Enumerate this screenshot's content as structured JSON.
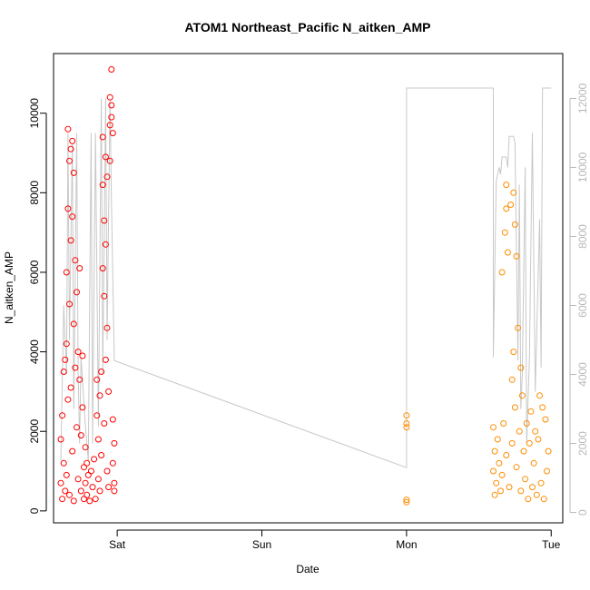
{
  "chart_data": {
    "type": "scatter",
    "title": "ATOM1 Northeast_Pacific N_aitken_AMP",
    "xlabel": "Date",
    "ylabel": "N_aitken_AMP",
    "x_unit": "days (0 = Sat 00:00)",
    "x_ticks": [
      {
        "pos": 0,
        "label": "Sat"
      },
      {
        "pos": 1,
        "label": "Sun"
      },
      {
        "pos": 2,
        "label": "Mon"
      },
      {
        "pos": 3,
        "label": "Tue"
      }
    ],
    "xlim": [
      -0.44,
      3.08
    ],
    "ylim": [
      -300,
      11500
    ],
    "y_ticks": [
      0,
      2000,
      4000,
      6000,
      8000,
      10000
    ],
    "y2lim": [
      -300,
      13300
    ],
    "y2_ticks": [
      0,
      2000,
      4000,
      6000,
      8000,
      10000,
      12000
    ],
    "grid": false,
    "legend": "none",
    "series": [
      {
        "color": "#ff0000",
        "marker": "open-circle",
        "points": [
          [
            -0.39,
            700
          ],
          [
            -0.39,
            1800
          ],
          [
            -0.38,
            300
          ],
          [
            -0.38,
            2400
          ],
          [
            -0.37,
            3500
          ],
          [
            -0.37,
            1200
          ],
          [
            -0.36,
            500
          ],
          [
            -0.36,
            3800
          ],
          [
            -0.35,
            4200
          ],
          [
            -0.35,
            900
          ],
          [
            -0.35,
            6000
          ],
          [
            -0.34,
            7600
          ],
          [
            -0.34,
            9600
          ],
          [
            -0.34,
            2800
          ],
          [
            -0.33,
            8800
          ],
          [
            -0.33,
            5200
          ],
          [
            -0.33,
            400
          ],
          [
            -0.32,
            9100
          ],
          [
            -0.32,
            6800
          ],
          [
            -0.32,
            3100
          ],
          [
            -0.31,
            7400
          ],
          [
            -0.31,
            1500
          ],
          [
            -0.31,
            9300
          ],
          [
            -0.3,
            4700
          ],
          [
            -0.3,
            8500
          ],
          [
            -0.3,
            250
          ],
          [
            -0.29,
            6300
          ],
          [
            -0.29,
            3600
          ],
          [
            -0.28,
            5500
          ],
          [
            -0.28,
            2100
          ],
          [
            -0.27,
            4000
          ],
          [
            -0.27,
            800
          ],
          [
            -0.26,
            3300
          ],
          [
            -0.26,
            6100
          ],
          [
            -0.25,
            1900
          ],
          [
            -0.25,
            500
          ],
          [
            -0.24,
            2600
          ],
          [
            -0.24,
            3900
          ],
          [
            -0.23,
            1100
          ],
          [
            -0.23,
            300
          ],
          [
            -0.22,
            700
          ],
          [
            -0.22,
            1600
          ],
          [
            -0.21,
            400
          ],
          [
            -0.21,
            1200
          ],
          [
            -0.2,
            900
          ],
          [
            -0.19,
            250
          ],
          [
            -0.18,
            1000
          ],
          [
            -0.17,
            600
          ],
          [
            -0.16,
            1300
          ],
          [
            -0.15,
            300
          ],
          [
            -0.14,
            2400
          ],
          [
            -0.14,
            3300
          ],
          [
            -0.13,
            800
          ],
          [
            -0.13,
            1800
          ],
          [
            -0.12,
            2900
          ],
          [
            -0.12,
            500
          ],
          [
            -0.11,
            3500
          ],
          [
            -0.11,
            1400
          ],
          [
            -0.1,
            6100
          ],
          [
            -0.1,
            8200
          ],
          [
            -0.1,
            9400
          ],
          [
            -0.09,
            7300
          ],
          [
            -0.09,
            5400
          ],
          [
            -0.09,
            2200
          ],
          [
            -0.08,
            8900
          ],
          [
            -0.08,
            6700
          ],
          [
            -0.08,
            3800
          ],
          [
            -0.07,
            4600
          ],
          [
            -0.07,
            1000
          ],
          [
            -0.07,
            8400
          ],
          [
            -0.06,
            3000
          ],
          [
            -0.06,
            600
          ],
          [
            -0.05,
            9700
          ],
          [
            -0.05,
            10400
          ],
          [
            -0.05,
            8800
          ],
          [
            -0.04,
            11100
          ],
          [
            -0.04,
            9900
          ],
          [
            -0.04,
            10200
          ],
          [
            -0.03,
            9500
          ],
          [
            -0.03,
            2300
          ],
          [
            -0.03,
            1200
          ],
          [
            -0.02,
            700
          ],
          [
            -0.02,
            1700
          ],
          [
            -0.02,
            500
          ]
        ]
      },
      {
        "color": "#ff8c00",
        "marker": "open-circle",
        "points": [
          [
            2.0,
            2100
          ],
          [
            2.0,
            2200
          ],
          [
            2.0,
            2400
          ],
          [
            2.0,
            280
          ],
          [
            2.0,
            220
          ],
          [
            2.6,
            1000
          ],
          [
            2.6,
            2100
          ],
          [
            2.61,
            400
          ],
          [
            2.61,
            1500
          ],
          [
            2.62,
            700
          ],
          [
            2.63,
            1800
          ],
          [
            2.64,
            1200
          ],
          [
            2.65,
            500
          ],
          [
            2.66,
            6000
          ],
          [
            2.66,
            900
          ],
          [
            2.67,
            2200
          ],
          [
            2.68,
            7000
          ],
          [
            2.69,
            8200
          ],
          [
            2.69,
            7600
          ],
          [
            2.69,
            1400
          ],
          [
            2.7,
            6500
          ],
          [
            2.71,
            600
          ],
          [
            2.72,
            7700
          ],
          [
            2.73,
            3300
          ],
          [
            2.73,
            1700
          ],
          [
            2.74,
            4000
          ],
          [
            2.74,
            8000
          ],
          [
            2.75,
            7200
          ],
          [
            2.75,
            2600
          ],
          [
            2.76,
            6400
          ],
          [
            2.76,
            1100
          ],
          [
            2.77,
            4600
          ],
          [
            2.78,
            2000
          ],
          [
            2.79,
            3600
          ],
          [
            2.79,
            500
          ],
          [
            2.8,
            2900
          ],
          [
            2.81,
            1500
          ],
          [
            2.82,
            800
          ],
          [
            2.83,
            2200
          ],
          [
            2.84,
            300
          ],
          [
            2.85,
            1700
          ],
          [
            2.86,
            2500
          ],
          [
            2.87,
            600
          ],
          [
            2.88,
            1200
          ],
          [
            2.89,
            2000
          ],
          [
            2.9,
            400
          ],
          [
            2.91,
            1800
          ],
          [
            2.92,
            2900
          ],
          [
            2.93,
            700
          ],
          [
            2.94,
            2600
          ],
          [
            2.95,
            300
          ],
          [
            2.96,
            2300
          ],
          [
            2.97,
            1000
          ],
          [
            2.98,
            1500
          ]
        ]
      },
      {
        "color": "#c8c8c8",
        "marker": "line",
        "axis": "right",
        "points": [
          [
            -0.39,
            1500
          ],
          [
            -0.37,
            6000
          ],
          [
            -0.35,
            4000
          ],
          [
            -0.34,
            11000
          ],
          [
            -0.33,
            5000
          ],
          [
            -0.31,
            10700
          ],
          [
            -0.3,
            3000
          ],
          [
            -0.28,
            11000
          ],
          [
            -0.27,
            4000
          ],
          [
            -0.26,
            2000
          ],
          [
            -0.25,
            4500
          ],
          [
            -0.22,
            2500
          ],
          [
            -0.2,
            1500
          ],
          [
            -0.18,
            11000
          ],
          [
            -0.17,
            2000
          ],
          [
            -0.15,
            11000
          ],
          [
            -0.13,
            2500
          ],
          [
            -0.11,
            12000
          ],
          [
            -0.1,
            4000
          ],
          [
            -0.08,
            12000
          ],
          [
            -0.07,
            5000
          ],
          [
            -0.05,
            12000
          ],
          [
            -0.04,
            9000
          ],
          [
            -0.02,
            4400
          ],
          [
            2.0,
            1300
          ],
          [
            2.0,
            7500
          ],
          [
            2.0,
            12300
          ],
          [
            2.6,
            12300
          ],
          [
            2.6,
            4500
          ],
          [
            2.62,
            9600
          ],
          [
            2.64,
            10000
          ],
          [
            2.65,
            9800
          ],
          [
            2.66,
            10300
          ],
          [
            2.69,
            10300
          ],
          [
            2.7,
            10000
          ],
          [
            2.71,
            10900
          ],
          [
            2.74,
            10900
          ],
          [
            2.75,
            10700
          ],
          [
            2.77,
            4400
          ],
          [
            2.78,
            9500
          ],
          [
            2.79,
            3000
          ],
          [
            2.8,
            4000
          ],
          [
            2.82,
            10000
          ],
          [
            2.83,
            2000
          ],
          [
            2.85,
            4500
          ],
          [
            2.87,
            11000
          ],
          [
            2.89,
            3500
          ],
          [
            2.92,
            8500
          ],
          [
            2.93,
            4200
          ],
          [
            2.94,
            12300
          ],
          [
            3.0,
            12300
          ]
        ]
      }
    ]
  }
}
